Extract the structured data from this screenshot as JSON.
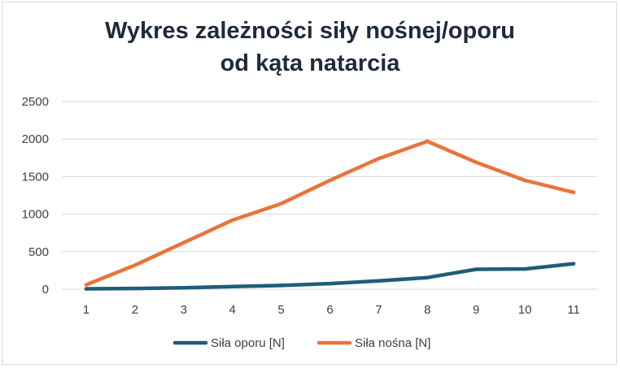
{
  "chart_data": {
    "type": "line",
    "title_line1": "Wykres zależności siły nośnej/oporu",
    "title_line2": "od kąta natarcia",
    "categories": [
      "1",
      "2",
      "3",
      "4",
      "5",
      "6",
      "7",
      "8",
      "9",
      "10",
      "11"
    ],
    "series": [
      {
        "name": "Siła oporu [N]",
        "color": "#1f5c7a",
        "values": [
          5,
          10,
          20,
          35,
          50,
          75,
          110,
          155,
          265,
          270,
          340
        ]
      },
      {
        "name": "Siła nośna [N]",
        "color": "#e8743b",
        "values": [
          60,
          320,
          620,
          920,
          1140,
          1450,
          1740,
          1970,
          1690,
          1450,
          1290
        ]
      }
    ],
    "ylim": [
      0,
      2500
    ],
    "yticks": [
      "0",
      "500",
      "1000",
      "1500",
      "2000",
      "2500"
    ],
    "grid": true,
    "legend_position": "bottom"
  }
}
